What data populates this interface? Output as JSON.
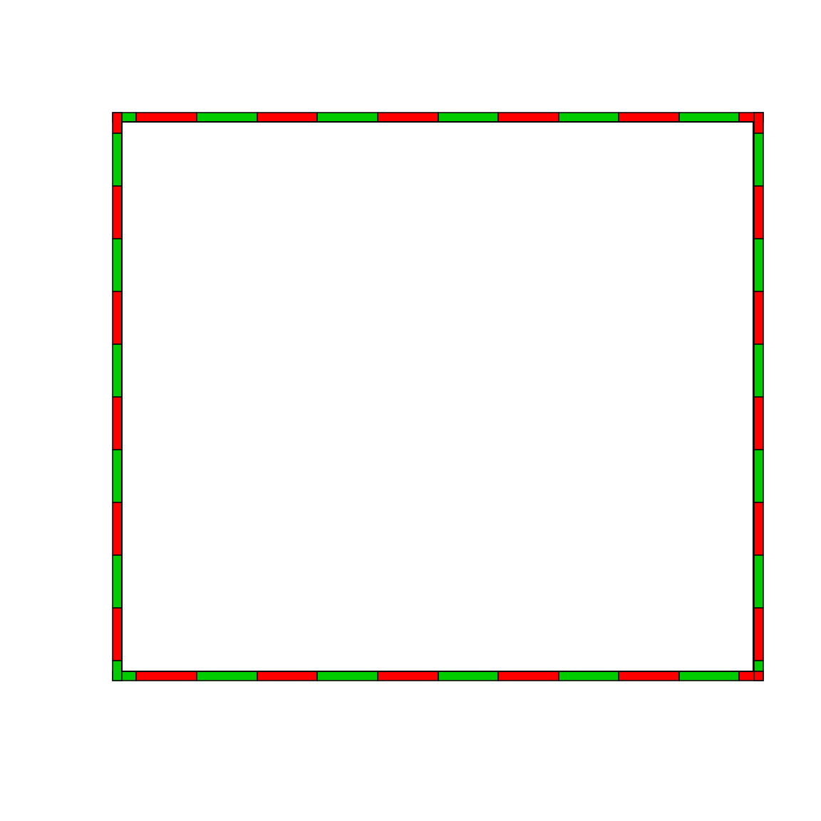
{
  "diagram": {
    "type": "checkered-border-frame",
    "background_color": "#ffffff",
    "outline_color": "#000000",
    "segment_colors": [
      "#ff0000",
      "#00cc00"
    ],
    "edges": {
      "top": {
        "colors": [
          "#ff0000",
          "#00cc00",
          "#ff0000",
          "#00cc00",
          "#ff0000",
          "#00cc00",
          "#ff0000",
          "#00cc00",
          "#ff0000",
          "#00cc00",
          "#ff0000",
          "#00cc00",
          "#ff0000",
          "#ff0000"
        ]
      },
      "bottom": {
        "colors": [
          "#00cc00",
          "#00cc00",
          "#ff0000",
          "#00cc00",
          "#ff0000",
          "#00cc00",
          "#ff0000",
          "#00cc00",
          "#ff0000",
          "#00cc00",
          "#ff0000",
          "#00cc00",
          "#ff0000"
        ]
      },
      "left": {
        "colors": [
          "#ff0000",
          "#00cc00",
          "#ff0000",
          "#00cc00",
          "#ff0000",
          "#00cc00",
          "#ff0000",
          "#00cc00",
          "#ff0000",
          "#00cc00",
          "#ff0000",
          "#00cc00",
          "#ff0000",
          "#00cc00"
        ]
      },
      "right": {
        "colors": [
          "#ff0000",
          "#00cc00",
          "#ff0000",
          "#00cc00",
          "#ff0000",
          "#00cc00",
          "#ff0000",
          "#00cc00",
          "#ff0000",
          "#00cc00",
          "#ff0000",
          "#00cc00",
          "#ff0000",
          "#00cc00"
        ]
      }
    }
  }
}
